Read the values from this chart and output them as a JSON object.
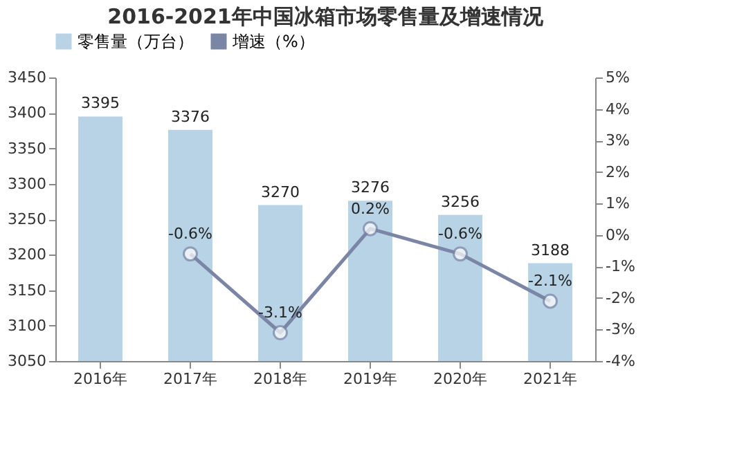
{
  "chart_data": {
    "type": "bar",
    "title": "2016-2021年中国冰箱市场零售量及增速情况",
    "categories": [
      "2016年",
      "2017年",
      "2018年",
      "2019年",
      "2020年",
      "2021年"
    ],
    "series": [
      {
        "name": "零售量（万台）",
        "color": "#b8d3e6",
        "values": [
          3395,
          3376,
          3270,
          3276,
          3256,
          3188
        ],
        "value_labels": [
          "3395",
          "3376",
          "3270",
          "3276",
          "3256",
          "3188"
        ]
      },
      {
        "name": "增速（%）",
        "type": "line",
        "axis": "y2",
        "color": "#7b86a6",
        "values": [
          null,
          -0.6,
          -3.1,
          0.2,
          -0.6,
          -2.1
        ],
        "value_labels": [
          null,
          "-0.6%",
          "-3.1%",
          "0.2%",
          "-0.6%",
          "-2.1%"
        ]
      }
    ],
    "ylim": [
      3050,
      3450
    ],
    "yticks": [
      3050,
      3100,
      3150,
      3200,
      3250,
      3300,
      3350,
      3400,
      3450
    ],
    "y2lim": [
      -4,
      5
    ],
    "y2ticks": [
      {
        "value": -4,
        "label": "-4%"
      },
      {
        "value": -3,
        "label": "-3%"
      },
      {
        "value": -2,
        "label": "-2%"
      },
      {
        "value": -1,
        "label": "-1%"
      },
      {
        "value": 0,
        "label": "0%"
      },
      {
        "value": 1,
        "label": "1%"
      },
      {
        "value": 2,
        "label": "2%"
      },
      {
        "value": 3,
        "label": "3%"
      },
      {
        "value": 4,
        "label": "4%"
      },
      {
        "value": 5,
        "label": "5%"
      }
    ],
    "legend": "top",
    "marker": "circle",
    "grid": false
  }
}
